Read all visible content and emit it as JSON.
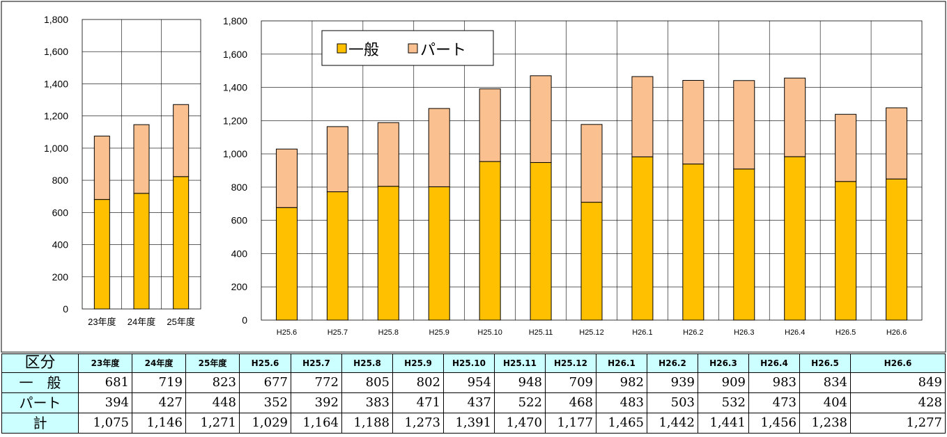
{
  "chart_data": [
    {
      "type": "bar",
      "stacked": true,
      "categories": [
        "23年度",
        "24年度",
        "25年度"
      ],
      "series": [
        {
          "name": "一般",
          "values": [
            681,
            719,
            823
          ],
          "color": "#ffc000"
        },
        {
          "name": "パート",
          "values": [
            394,
            427,
            448
          ],
          "color": "#fac090"
        }
      ],
      "ylim": [
        0,
        1800
      ],
      "yticks": [
        "0",
        "200",
        "400",
        "600",
        "800",
        "1,000",
        "1,200",
        "1,400",
        "1,600",
        "1,800"
      ],
      "grid": true
    },
    {
      "type": "bar",
      "stacked": true,
      "categories": [
        "H25.6",
        "H25.7",
        "H25.8",
        "H25.9",
        "H25.10",
        "H25.11",
        "H25.12",
        "H26.1",
        "H26.2",
        "H26.3",
        "H26.4",
        "H26.5",
        "H26.6"
      ],
      "series": [
        {
          "name": "一般",
          "values": [
            677,
            772,
            805,
            802,
            954,
            948,
            709,
            982,
            939,
            909,
            983,
            834,
            849
          ],
          "color": "#ffc000"
        },
        {
          "name": "パート",
          "values": [
            352,
            392,
            383,
            471,
            437,
            522,
            468,
            483,
            503,
            532,
            473,
            404,
            428
          ],
          "color": "#fac090"
        }
      ],
      "ylim": [
        0,
        1800
      ],
      "yticks": [
        "0",
        "200",
        "400",
        "600",
        "800",
        "1,000",
        "1,200",
        "1,400",
        "1,600",
        "1,800"
      ],
      "grid": true,
      "legend_position": "top-left"
    }
  ],
  "legend": {
    "general": "一般",
    "part": "パート"
  },
  "table": {
    "header_label": "区分",
    "columns": [
      "23年度",
      "24年度",
      "25年度",
      "H25.6",
      "H25.7",
      "H25.8",
      "H25.9",
      "H25.10",
      "H25.11",
      "H25.12",
      "H26.1",
      "H26.2",
      "H26.3",
      "H26.4",
      "H26.5",
      "H26.6"
    ],
    "rows": [
      {
        "label": "一　般",
        "values": [
          "681",
          "719",
          "823",
          "677",
          "772",
          "805",
          "802",
          "954",
          "948",
          "709",
          "982",
          "939",
          "909",
          "983",
          "834",
          "849"
        ]
      },
      {
        "label": "パート",
        "values": [
          "394",
          "427",
          "448",
          "352",
          "392",
          "383",
          "471",
          "437",
          "522",
          "468",
          "483",
          "503",
          "532",
          "473",
          "404",
          "428"
        ]
      },
      {
        "label": "計",
        "values": [
          "1,075",
          "1,146",
          "1,271",
          "1,029",
          "1,164",
          "1,188",
          "1,273",
          "1,391",
          "1,470",
          "1,177",
          "1,465",
          "1,442",
          "1,441",
          "1,456",
          "1,238",
          "1,277"
        ]
      }
    ]
  }
}
